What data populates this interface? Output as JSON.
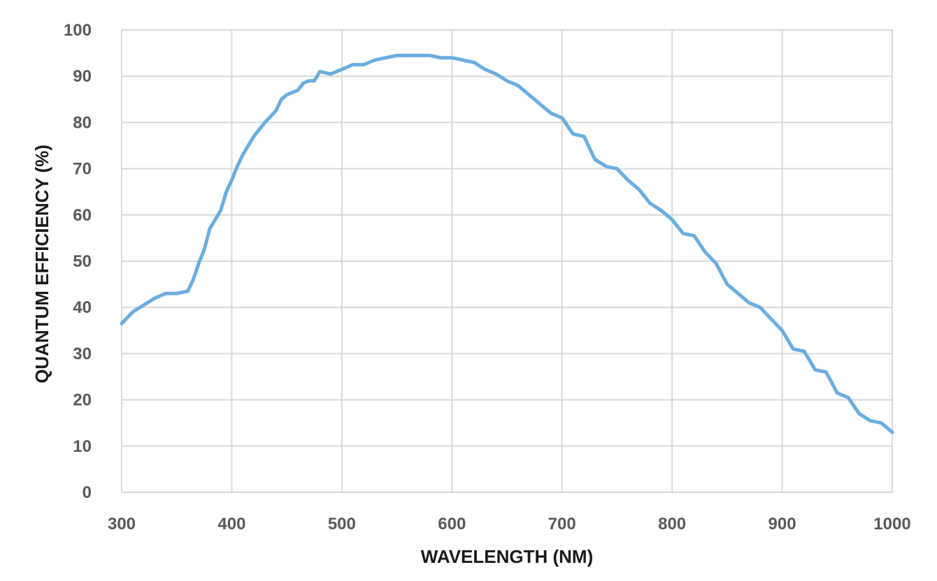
{
  "chart_data": {
    "type": "line",
    "title": "",
    "xlabel": "WAVELENGTH (NM)",
    "ylabel": "QUANTUM EFFICIENCY (%)",
    "xlim": [
      300,
      1000
    ],
    "ylim": [
      0,
      100
    ],
    "x_ticks": [
      300,
      400,
      500,
      600,
      700,
      800,
      900,
      1000
    ],
    "y_ticks": [
      0,
      10,
      20,
      30,
      40,
      50,
      60,
      70,
      80,
      90,
      100
    ],
    "grid": true,
    "legend": "none",
    "line_color": "#6aaee0",
    "grid_color": "#d9d9d9",
    "series": [
      {
        "x": [
          300,
          310,
          320,
          330,
          340,
          345,
          350,
          360,
          365,
          370,
          375,
          380,
          390,
          395,
          400,
          405,
          410,
          420,
          430,
          440,
          445,
          450,
          460,
          465,
          470,
          475,
          480,
          490,
          500,
          510,
          520,
          530,
          540,
          550,
          560,
          570,
          575,
          580,
          590,
          600,
          610,
          620,
          630,
          640,
          650,
          660,
          670,
          680,
          690,
          700,
          710,
          720,
          730,
          740,
          750,
          760,
          770,
          780,
          790,
          800,
          810,
          820,
          830,
          840,
          850,
          860,
          870,
          880,
          890,
          900,
          910,
          920,
          930,
          940,
          950,
          960,
          970,
          980,
          990,
          1000
        ],
        "values": [
          36.5,
          39,
          40.5,
          42,
          43,
          43,
          43,
          43.5,
          46,
          49.5,
          52.5,
          57,
          61,
          65,
          67.5,
          70.5,
          73,
          77,
          80,
          82.5,
          85,
          86,
          87,
          88.5,
          89,
          89,
          91,
          90.5,
          91.5,
          92.5,
          92.5,
          93.5,
          94,
          94.5,
          94.5,
          94.5,
          94.5,
          94.5,
          94,
          94,
          93.5,
          93,
          91.5,
          90.5,
          89,
          88,
          86,
          84,
          82,
          81,
          77.5,
          77,
          72,
          70.5,
          70,
          67.5,
          65.5,
          62.5,
          61,
          59,
          56,
          55.5,
          52,
          49.5,
          45,
          43,
          41,
          40,
          37.5,
          35,
          31,
          30.5,
          26.5,
          26,
          21.5,
          20.5,
          17,
          15.5,
          15,
          13
        ]
      }
    ]
  }
}
